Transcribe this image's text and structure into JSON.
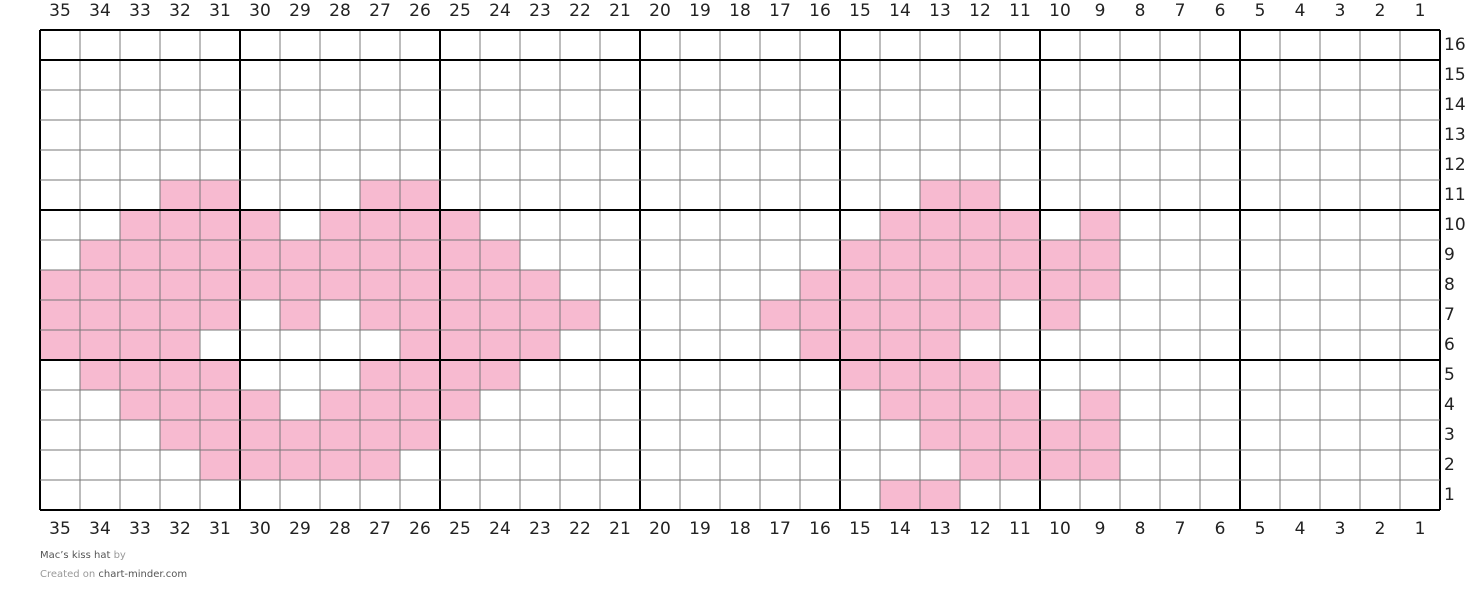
{
  "grid": {
    "columns": [
      35,
      34,
      33,
      32,
      31,
      30,
      29,
      28,
      27,
      26,
      25,
      24,
      23,
      22,
      21,
      20,
      19,
      18,
      17,
      16,
      15,
      14,
      13,
      12,
      11,
      10,
      9,
      8,
      7,
      6,
      5,
      4,
      3,
      2,
      1
    ],
    "rows": [
      16,
      15,
      14,
      13,
      12,
      11,
      10,
      9,
      8,
      7,
      6,
      5,
      4,
      3,
      2,
      1
    ],
    "color": "#f7bad0",
    "pattern": [
      {
        "row": 11,
        "cols": [
          32,
          31,
          27,
          26,
          13,
          12
        ]
      },
      {
        "row": 10,
        "cols": [
          33,
          32,
          31,
          30,
          28,
          27,
          26,
          25,
          14,
          13,
          12,
          11,
          9
        ]
      },
      {
        "row": 9,
        "cols": [
          34,
          33,
          32,
          31,
          30,
          29,
          28,
          27,
          26,
          25,
          24,
          15,
          14,
          13,
          12,
          11,
          10,
          9
        ]
      },
      {
        "row": 8,
        "cols": [
          35,
          34,
          33,
          32,
          31,
          30,
          29,
          28,
          27,
          26,
          25,
          24,
          23,
          16,
          15,
          14,
          13,
          12,
          11,
          10,
          9
        ]
      },
      {
        "row": 7,
        "cols": [
          35,
          34,
          33,
          32,
          31,
          29,
          27,
          26,
          25,
          24,
          23,
          22,
          17,
          16,
          15,
          14,
          13,
          12,
          10
        ]
      },
      {
        "row": 6,
        "cols": [
          35,
          34,
          33,
          32,
          26,
          25,
          24,
          23,
          16,
          15,
          14,
          13
        ]
      },
      {
        "row": 5,
        "cols": [
          34,
          33,
          32,
          31,
          27,
          26,
          25,
          24,
          15,
          14,
          13,
          12
        ]
      },
      {
        "row": 4,
        "cols": [
          33,
          32,
          31,
          30,
          28,
          27,
          26,
          25,
          14,
          13,
          12,
          11,
          9
        ]
      },
      {
        "row": 3,
        "cols": [
          32,
          31,
          30,
          29,
          28,
          27,
          26,
          13,
          12,
          11,
          10,
          9
        ]
      },
      {
        "row": 2,
        "cols": [
          31,
          30,
          29,
          28,
          27,
          12,
          11,
          10,
          9
        ]
      },
      {
        "row": 1,
        "cols": [
          14,
          13
        ]
      }
    ]
  },
  "footer": {
    "title": "Mac’s kiss hat",
    "by": "by",
    "created": "Created on",
    "site": "chart-minder.com"
  }
}
